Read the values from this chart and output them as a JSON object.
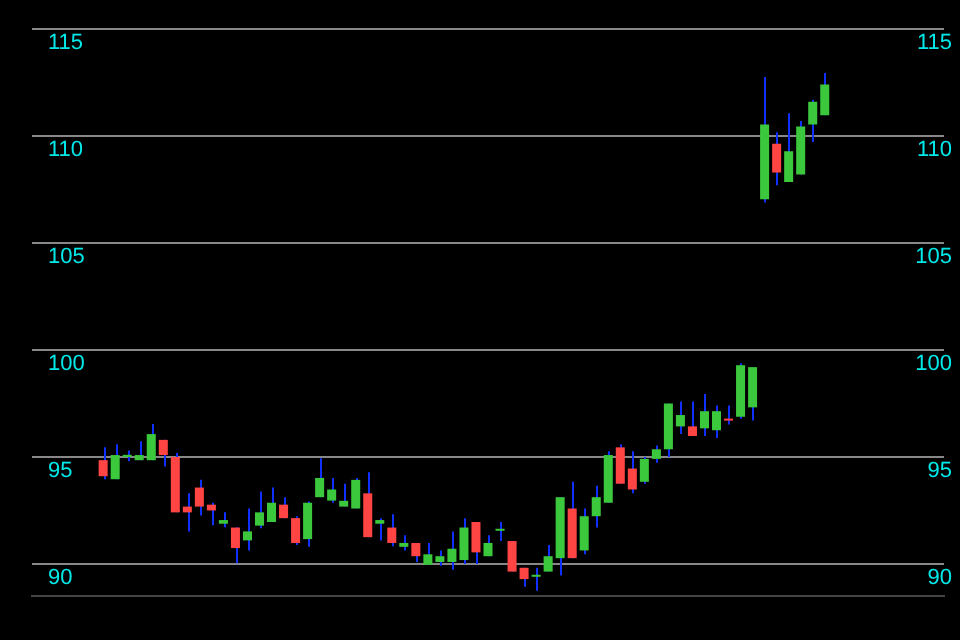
{
  "chart_data": {
    "type": "candlestick",
    "categories": [
      null,
      null,
      null,
      null,
      null,
      null,
      null,
      null,
      null,
      null,
      null,
      null,
      null,
      null,
      null,
      null,
      null,
      null,
      null,
      null,
      null,
      null,
      null,
      null,
      null,
      null,
      null,
      null,
      null,
      null,
      null,
      null,
      null,
      null,
      null,
      null,
      null,
      null,
      null,
      null,
      null,
      null,
      null,
      null,
      null,
      null,
      null,
      null,
      null,
      null,
      null,
      null,
      null,
      null,
      null,
      null,
      null,
      null,
      null,
      null,
      null
    ],
    "ohlc": [
      [
        94.85,
        95.45,
        93.96,
        94.1
      ],
      [
        93.96,
        95.6,
        93.96,
        95.09
      ],
      [
        95.0,
        95.3,
        94.8,
        95.1
      ],
      [
        94.85,
        95.74,
        94.85,
        95.09
      ],
      [
        94.85,
        96.54,
        94.85,
        96.07
      ],
      [
        95.8,
        95.8,
        94.55,
        95.09
      ],
      [
        95.0,
        95.18,
        92.41,
        92.41
      ],
      [
        92.68,
        93.3,
        91.52,
        92.41
      ],
      [
        93.57,
        93.93,
        92.26,
        92.68
      ],
      [
        92.77,
        92.86,
        91.81,
        92.5
      ],
      [
        91.88,
        92.41,
        91.72,
        92.05
      ],
      [
        91.7,
        91.72,
        90.03,
        90.74
      ],
      [
        91.1,
        92.59,
        90.63,
        91.52
      ],
      [
        91.79,
        93.39,
        91.67,
        92.41
      ],
      [
        91.96,
        93.57,
        91.96,
        92.86
      ],
      [
        92.77,
        93.12,
        92.14,
        92.14
      ],
      [
        92.14,
        92.23,
        90.89,
        90.98
      ],
      [
        91.16,
        92.92,
        90.8,
        92.86
      ],
      [
        93.12,
        94.94,
        93.12,
        94.02
      ],
      [
        92.96,
        94.02,
        92.86,
        93.48
      ],
      [
        92.68,
        93.75,
        92.68,
        92.95
      ],
      [
        92.59,
        94.02,
        92.59,
        93.93
      ],
      [
        93.3,
        94.29,
        91.25,
        91.25
      ],
      [
        91.88,
        92.14,
        91.1,
        92.05
      ],
      [
        91.7,
        92.32,
        90.83,
        90.98
      ],
      [
        90.8,
        91.34,
        90.63,
        90.98
      ],
      [
        90.98,
        90.98,
        90.09,
        90.36
      ],
      [
        89.96,
        90.98,
        89.96,
        90.45
      ],
      [
        90.09,
        90.63,
        89.91,
        90.36
      ],
      [
        90.09,
        91.52,
        89.73,
        90.71
      ],
      [
        90.18,
        92.14,
        90.0,
        91.7
      ],
      [
        91.96,
        91.96,
        90.0,
        90.54
      ],
      [
        90.36,
        91.34,
        90.36,
        90.98
      ],
      [
        91.55,
        91.96,
        91.07,
        91.6
      ],
      [
        91.07,
        91.07,
        89.64,
        89.64
      ],
      [
        89.82,
        89.82,
        88.93,
        89.29
      ],
      [
        89.4,
        89.82,
        88.75,
        89.45
      ],
      [
        89.64,
        90.89,
        89.64,
        90.36
      ],
      [
        90.27,
        93.12,
        89.46,
        93.12
      ],
      [
        92.59,
        93.84,
        90.27,
        90.27
      ],
      [
        90.63,
        92.59,
        90.45,
        92.23
      ],
      [
        92.23,
        93.66,
        91.7,
        93.12
      ],
      [
        92.86,
        95.27,
        92.86,
        95.09
      ],
      [
        95.45,
        95.6,
        93.75,
        93.75
      ],
      [
        94.46,
        95.27,
        93.3,
        93.48
      ],
      [
        93.84,
        95.0,
        93.75,
        94.91
      ],
      [
        94.91,
        95.54,
        94.73,
        95.36
      ],
      [
        95.36,
        97.5,
        95.0,
        97.5
      ],
      [
        96.43,
        97.59,
        96.07,
        96.96
      ],
      [
        96.43,
        97.59,
        95.98,
        95.98
      ],
      [
        96.34,
        97.95,
        95.98,
        97.14
      ],
      [
        96.25,
        97.41,
        95.89,
        97.14
      ],
      [
        96.75,
        97.41,
        96.52,
        96.7
      ],
      [
        96.88,
        99.38,
        96.79,
        99.29
      ],
      [
        97.32,
        99.2,
        96.7,
        99.2
      ],
      [
        107.05,
        112.77,
        106.9,
        110.54
      ],
      [
        109.64,
        110.18,
        107.7,
        108.3
      ],
      [
        107.86,
        111.07,
        107.86,
        109.29
      ],
      [
        108.21,
        110.71,
        108.21,
        110.45
      ],
      [
        110.54,
        111.7,
        109.73,
        111.61
      ],
      [
        110.98,
        112.95,
        110.98,
        112.41
      ]
    ],
    "colors": [
      "#ff4444",
      "#3cc83c",
      "#3cc83c",
      "#3cc83c",
      "#3cc83c",
      "#ff4444",
      "#ff4444",
      "#ff4444",
      "#ff4444",
      "#ff4444",
      "#3cc83c",
      "#ff4444",
      "#3cc83c",
      "#3cc83c",
      "#3cc83c",
      "#ff4444",
      "#ff4444",
      "#3cc83c",
      "#3cc83c",
      "#3cc83c",
      "#3cc83c",
      "#3cc83c",
      "#ff4444",
      "#3cc83c",
      "#ff4444",
      "#3cc83c",
      "#ff4444",
      "#3cc83c",
      "#3cc83c",
      "#3cc83c",
      "#3cc83c",
      "#ff4444",
      "#3cc83c",
      "#3cc83c",
      "#ff4444",
      "#ff4444",
      "#3cc83c",
      "#3cc83c",
      "#3cc83c",
      "#ff4444",
      "#3cc83c",
      "#3cc83c",
      "#3cc83c",
      "#ff4444",
      "#ff4444",
      "#3cc83c",
      "#3cc83c",
      "#3cc83c",
      "#3cc83c",
      "#ff4444",
      "#3cc83c",
      "#3cc83c",
      "#ff4444",
      "#3cc83c",
      "#3cc83c",
      "#3cc83c",
      "#ff4444",
      "#3cc83c",
      "#3cc83c",
      "#3cc83c",
      "#3cc83c"
    ],
    "ylim": [
      88.5,
      115
    ],
    "yticks": [
      90,
      95,
      100,
      105,
      110,
      115
    ],
    "y2lim": [
      88.5,
      115
    ],
    "y2ticks": [
      90,
      95,
      100,
      105,
      110,
      115
    ],
    "grid": "y",
    "legend": false
  }
}
